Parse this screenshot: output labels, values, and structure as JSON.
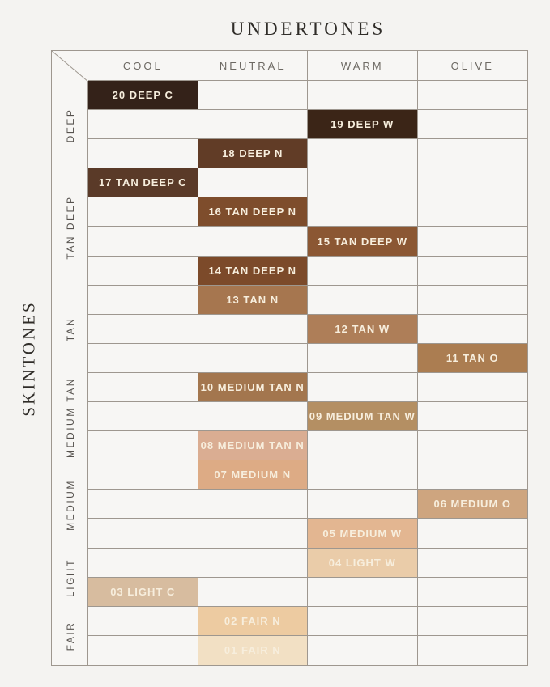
{
  "chart_data": {
    "type": "heatmap",
    "xlabel": "UNDERTONES",
    "ylabel": "SKINTONES",
    "columns": [
      "COOL",
      "NEUTRAL",
      "WARM",
      "OLIVE"
    ],
    "row_groups": [
      {
        "label": "DEEP",
        "rows": 3
      },
      {
        "label": "TAN DEEP",
        "rows": 4
      },
      {
        "label": "TAN",
        "rows": 3
      },
      {
        "label": "MEDIUM TAN",
        "rows": 3
      },
      {
        "label": "MEDIUM",
        "rows": 3
      },
      {
        "label": "LIGHT",
        "rows": 2
      },
      {
        "label": "FAIR",
        "rows": 2
      }
    ],
    "shades": [
      {
        "label": "20 DEEP C",
        "row": 1,
        "column": "COOL",
        "color": "#342219"
      },
      {
        "label": "19 DEEP W",
        "row": 2,
        "column": "WARM",
        "color": "#3b2517"
      },
      {
        "label": "18 DEEP N",
        "row": 3,
        "column": "NEUTRAL",
        "color": "#613c26"
      },
      {
        "label": "17 TAN DEEP C",
        "row": 4,
        "column": "COOL",
        "color": "#5a3a28"
      },
      {
        "label": "16 TAN DEEP N",
        "row": 5,
        "column": "NEUTRAL",
        "color": "#7e4d2c"
      },
      {
        "label": "15 TAN DEEP W",
        "row": 6,
        "column": "WARM",
        "color": "#8b5733"
      },
      {
        "label": "14 TAN DEEP N",
        "row": 7,
        "column": "NEUTRAL",
        "color": "#7c4a2a"
      },
      {
        "label": "13 TAN N",
        "row": 8,
        "column": "NEUTRAL",
        "color": "#a6764f"
      },
      {
        "label": "12 TAN W",
        "row": 9,
        "column": "WARM",
        "color": "#ae7e58"
      },
      {
        "label": "11 TAN O",
        "row": 10,
        "column": "OLIVE",
        "color": "#ab7d51"
      },
      {
        "label": "10 MEDIUM TAN N",
        "row": 11,
        "column": "NEUTRAL",
        "color": "#a3764e"
      },
      {
        "label": "09 MEDIUM TAN W",
        "row": 12,
        "column": "WARM",
        "color": "#b48f63"
      },
      {
        "label": "08 MEDIUM TAN N",
        "row": 13,
        "column": "NEUTRAL",
        "color": "#daad92"
      },
      {
        "label": "07 MEDIUM N",
        "row": 14,
        "column": "NEUTRAL",
        "color": "#ddab85"
      },
      {
        "label": "06 MEDIUM O",
        "row": 15,
        "column": "OLIVE",
        "color": "#cea57f"
      },
      {
        "label": "05 MEDIUM W",
        "row": 16,
        "column": "WARM",
        "color": "#e3b691"
      },
      {
        "label": "04 LIGHT W",
        "row": 17,
        "column": "WARM",
        "color": "#eacca9"
      },
      {
        "label": "03 LIGHT C",
        "row": 18,
        "column": "COOL",
        "color": "#d7bc9f"
      },
      {
        "label": "02 FAIR N",
        "row": 19,
        "column": "NEUTRAL",
        "color": "#edcba1"
      },
      {
        "label": "01 FAIR N",
        "row": 20,
        "column": "NEUTRAL",
        "color": "#f2e0c4"
      }
    ]
  },
  "colors": {
    "background": "#f4f3f1",
    "cell_background": "#f7f6f4",
    "grid_border": "#9e978f",
    "title_text": "#2f2c28",
    "column_header_text": "#6d6963",
    "group_label_text": "#56524e",
    "swatch_label_text": "#f7eedd"
  }
}
